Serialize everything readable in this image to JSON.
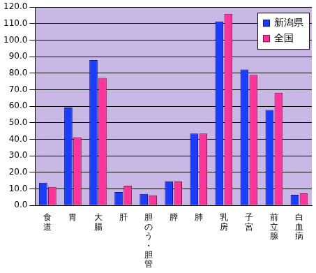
{
  "chart_data": {
    "type": "bar",
    "categories": [
      "食道",
      "胃",
      "大腸",
      "肝",
      "胆のう・胆管",
      "膵",
      "肺",
      "乳房",
      "子宮",
      "前立腺",
      "白血病"
    ],
    "series": [
      {
        "name": "新潟県",
        "color": "#1a3cff",
        "values": [
          13.8,
          59.3,
          88.0,
          8.2,
          7.0,
          14.5,
          43.5,
          111.3,
          82.3,
          57.8,
          6.5
        ]
      },
      {
        "name": "全国",
        "color": "#ff3399",
        "values": [
          11.2,
          41.3,
          77.2,
          12.0,
          6.2,
          14.5,
          43.5,
          116.0,
          79.0,
          68.2,
          7.3
        ]
      }
    ],
    "ylim": [
      0,
      120
    ],
    "yticks": [
      {
        "value": 0,
        "label": "0.0"
      },
      {
        "value": 10,
        "label": "10.0"
      },
      {
        "value": 20,
        "label": "20.0"
      },
      {
        "value": 30,
        "label": "30.0"
      },
      {
        "value": 40,
        "label": "40.0"
      },
      {
        "value": 50,
        "label": "50.0"
      },
      {
        "value": 60,
        "label": "60.0"
      },
      {
        "value": 70,
        "label": "70.0"
      },
      {
        "value": 80,
        "label": "80.0"
      },
      {
        "value": 90,
        "label": "90.0"
      },
      {
        "value": 100,
        "label": "100.0"
      },
      {
        "value": 110,
        "label": "110.0"
      },
      {
        "value": 120,
        "label": "120.0"
      }
    ],
    "grid": true,
    "legend": "upper right"
  }
}
